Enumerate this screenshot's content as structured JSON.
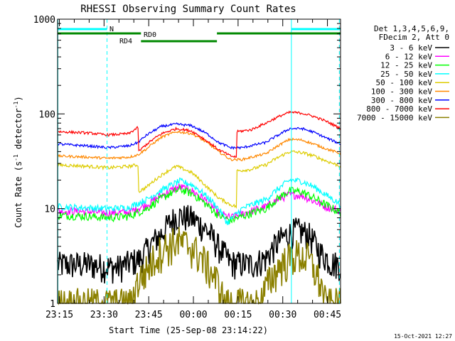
{
  "chart_data": {
    "type": "line",
    "title": "RHESSI Observing Summary Count Rates",
    "xlabel": "Start Time (25-Sep-08 23:14:22)",
    "ylabel_main": "Count Rate (s",
    "ylabel_sup1": "-1",
    "ylabel_mid": " detector",
    "ylabel_sup2": "-1",
    "ylabel_end": ")",
    "yscale": "log",
    "ylim": [
      1,
      1000
    ],
    "xlim_min": [
      0,
      95
    ],
    "y_ticks": [
      {
        "value": 1,
        "label": "1"
      },
      {
        "value": 10,
        "label": "10"
      },
      {
        "value": 100,
        "label": "100"
      },
      {
        "value": 1000,
        "label": "1000"
      }
    ],
    "x_ticks": [
      {
        "t": 0.6,
        "label": "23:15"
      },
      {
        "t": 15.6,
        "label": "23:30"
      },
      {
        "t": 30.6,
        "label": "23:45"
      },
      {
        "t": 45.6,
        "label": "00:00"
      },
      {
        "t": 60.6,
        "label": "00:15"
      },
      {
        "t": 75.6,
        "label": "00:30"
      },
      {
        "t": 90.6,
        "label": "00:45"
      }
    ],
    "legend_header": [
      "Det 1,3,4,5,6,9,",
      "FDecim 2, Att 0"
    ],
    "series": [
      {
        "name": "3 - 6 keV",
        "color": "#000000",
        "points": [
          [
            0,
            2.6
          ],
          [
            10,
            2.6
          ],
          [
            20,
            2.4
          ],
          [
            28,
            3.0
          ],
          [
            35,
            5.5
          ],
          [
            40,
            8.5
          ],
          [
            45,
            8.0
          ],
          [
            50,
            6.0
          ],
          [
            54,
            4.0
          ],
          [
            58,
            2.7
          ],
          [
            65,
            2.6
          ],
          [
            70,
            3.0
          ],
          [
            75,
            4.8
          ],
          [
            80,
            6.0
          ],
          [
            84,
            5.5
          ],
          [
            88,
            3.5
          ],
          [
            92,
            2.7
          ],
          [
            95,
            2.6
          ]
        ]
      },
      {
        "name": "6 - 12 keV",
        "color": "#ff00ff",
        "points": [
          [
            0,
            9.5
          ],
          [
            10,
            9.3
          ],
          [
            17,
            9.0
          ],
          [
            24,
            9.2
          ],
          [
            30,
            11
          ],
          [
            37,
            15
          ],
          [
            41,
            17
          ],
          [
            45,
            15.5
          ],
          [
            50,
            12
          ],
          [
            54,
            9
          ],
          [
            58,
            8
          ],
          [
            63,
            9
          ],
          [
            70,
            10.5
          ],
          [
            75,
            13
          ],
          [
            78,
            14
          ],
          [
            82,
            13.8
          ],
          [
            86,
            12
          ],
          [
            90,
            10.5
          ],
          [
            95,
            9.5
          ]
        ]
      },
      {
        "name": "12 - 25 keV",
        "color": "#00ff00",
        "points": [
          [
            0,
            8.5
          ],
          [
            10,
            8.3
          ],
          [
            17,
            8.0
          ],
          [
            24,
            8.3
          ],
          [
            30,
            10
          ],
          [
            37,
            14
          ],
          [
            41,
            16
          ],
          [
            45,
            14.5
          ],
          [
            50,
            11
          ],
          [
            54,
            8.5
          ],
          [
            58,
            7.5
          ],
          [
            63,
            8.5
          ],
          [
            70,
            10
          ],
          [
            75,
            13.5
          ],
          [
            78,
            15.5
          ],
          [
            82,
            15
          ],
          [
            86,
            13
          ],
          [
            90,
            11
          ],
          [
            95,
            9
          ]
        ]
      },
      {
        "name": "25 - 50 keV",
        "color": "#00ffff",
        "points": [
          [
            0,
            10.5
          ],
          [
            10,
            10.2
          ],
          [
            17,
            10
          ],
          [
            24,
            10.3
          ],
          [
            30,
            12.5
          ],
          [
            37,
            17
          ],
          [
            41,
            19.5
          ],
          [
            45,
            18
          ],
          [
            50,
            13.5
          ],
          [
            54,
            10
          ],
          [
            57,
            7
          ],
          [
            62,
            10
          ],
          [
            70,
            12.5
          ],
          [
            75,
            17
          ],
          [
            78,
            20
          ],
          [
            82,
            19.5
          ],
          [
            86,
            17
          ],
          [
            90,
            14
          ],
          [
            95,
            11
          ]
        ]
      },
      {
        "name": "50 - 100 keV",
        "color": "#ddcc00",
        "points": [
          [
            0,
            29
          ],
          [
            10,
            28
          ],
          [
            17,
            27
          ],
          [
            24,
            28
          ],
          [
            27,
            29
          ],
          [
            27.2,
            15
          ],
          [
            30,
            17
          ],
          [
            37,
            25
          ],
          [
            40,
            28
          ],
          [
            45,
            24
          ],
          [
            50,
            17
          ],
          [
            54,
            13
          ],
          [
            58,
            11
          ],
          [
            60,
            10.5
          ],
          [
            60.2,
            25
          ],
          [
            65,
            26
          ],
          [
            70,
            29
          ],
          [
            75,
            36
          ],
          [
            78,
            40
          ],
          [
            82,
            39
          ],
          [
            86,
            36
          ],
          [
            90,
            32
          ],
          [
            95,
            28
          ]
        ]
      },
      {
        "name": "100 - 300 keV",
        "color": "#ff8800",
        "points": [
          [
            0,
            36
          ],
          [
            10,
            35
          ],
          [
            17,
            34
          ],
          [
            24,
            35
          ],
          [
            27,
            37
          ],
          [
            30,
            43
          ],
          [
            35,
            57
          ],
          [
            40,
            65
          ],
          [
            45,
            62
          ],
          [
            50,
            50
          ],
          [
            54,
            40
          ],
          [
            58,
            33
          ],
          [
            62,
            33
          ],
          [
            70,
            38
          ],
          [
            75,
            48
          ],
          [
            78,
            54
          ],
          [
            82,
            53
          ],
          [
            86,
            48
          ],
          [
            90,
            43
          ],
          [
            95,
            38
          ]
        ]
      },
      {
        "name": "300 - 800 keV",
        "color": "#0000ff",
        "points": [
          [
            0,
            48
          ],
          [
            10,
            46
          ],
          [
            17,
            44
          ],
          [
            24,
            46
          ],
          [
            27,
            50
          ],
          [
            30,
            60
          ],
          [
            35,
            74
          ],
          [
            40,
            78
          ],
          [
            45,
            75
          ],
          [
            50,
            62
          ],
          [
            54,
            50
          ],
          [
            58,
            44
          ],
          [
            62,
            44
          ],
          [
            70,
            50
          ],
          [
            75,
            62
          ],
          [
            78,
            70
          ],
          [
            82,
            70
          ],
          [
            86,
            64
          ],
          [
            90,
            56
          ],
          [
            95,
            48
          ]
        ]
      },
      {
        "name": "800 - 7000 keV",
        "color": "#ff0000",
        "points": [
          [
            0,
            65
          ],
          [
            10,
            63
          ],
          [
            17,
            60
          ],
          [
            24,
            62
          ],
          [
            27,
            72
          ],
          [
            27.2,
            40
          ],
          [
            30,
            48
          ],
          [
            35,
            62
          ],
          [
            40,
            70
          ],
          [
            45,
            66
          ],
          [
            50,
            52
          ],
          [
            54,
            42
          ],
          [
            58,
            36
          ],
          [
            60,
            35
          ],
          [
            60.2,
            65
          ],
          [
            65,
            68
          ],
          [
            70,
            80
          ],
          [
            75,
            96
          ],
          [
            78,
            104
          ],
          [
            82,
            102
          ],
          [
            86,
            94
          ],
          [
            90,
            84
          ],
          [
            95,
            70
          ]
        ]
      },
      {
        "name": "7000 - 15000 keV",
        "color": "#8b8000",
        "points": [
          [
            0,
            1.0
          ],
          [
            25,
            1.0
          ],
          [
            26,
            1.5
          ],
          [
            30,
            2.3
          ],
          [
            35,
            3.8
          ],
          [
            40,
            4.6
          ],
          [
            45,
            4.0
          ],
          [
            50,
            2.6
          ],
          [
            54,
            1.6
          ],
          [
            56,
            1.0
          ],
          [
            68,
            1.0
          ],
          [
            70,
            1.5
          ],
          [
            75,
            2.6
          ],
          [
            80,
            3.3
          ],
          [
            84,
            3.0
          ],
          [
            88,
            1.7
          ],
          [
            90,
            1.0
          ],
          [
            95,
            1.0
          ]
        ]
      }
    ],
    "annotations": [
      {
        "text": "N",
        "color": "#00ffff"
      },
      {
        "text": "RD0",
        "color": "#008800"
      },
      {
        "text": "RD4",
        "color": "#008800"
      }
    ],
    "flag_bars": [
      {
        "label": "N",
        "color": "#00ffff",
        "level": 1,
        "segments": [
          [
            0,
            16.6
          ],
          [
            78.5,
            95
          ]
        ]
      },
      {
        "label": "RD0",
        "color": "#008800",
        "level": 2,
        "segments": [
          [
            0,
            28
          ],
          [
            53.5,
            95
          ]
        ]
      },
      {
        "label": "RD4",
        "color": "#008800",
        "level": 3,
        "segments": [
          [
            28,
            53.5
          ]
        ]
      }
    ],
    "vlines": [
      {
        "t": 0.1,
        "color": "#00ffff",
        "style": "solid"
      },
      {
        "t": 16.6,
        "color": "#00ffff",
        "style": "dashed"
      },
      {
        "t": 78.5,
        "color": "#00ffff",
        "style": "solid"
      },
      {
        "t": 94.6,
        "color": "#00ffff",
        "style": "dashed"
      }
    ],
    "timestamp": "15-Oct-2021 12:27"
  }
}
